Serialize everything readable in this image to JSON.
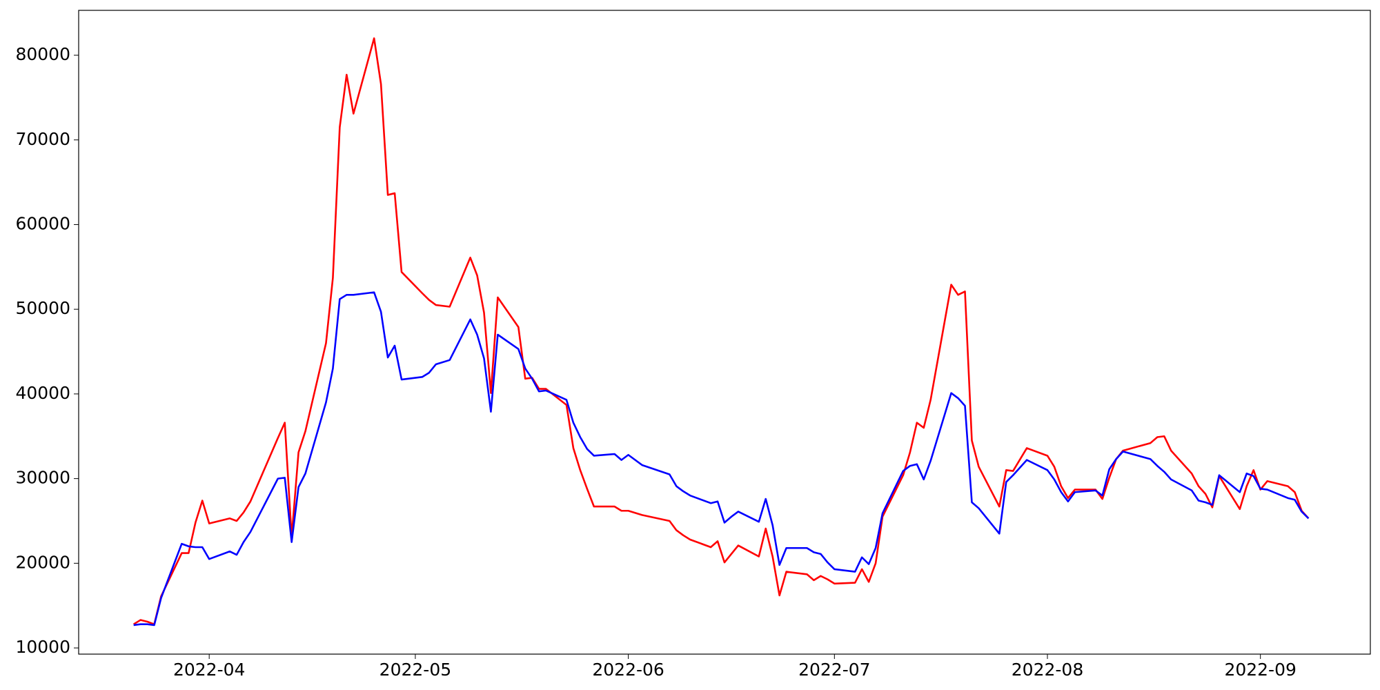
{
  "chart_data": {
    "type": "line",
    "x": [
      "2022-03-21",
      "2022-03-22",
      "2022-03-23",
      "2022-03-24",
      "2022-03-25",
      "2022-03-28",
      "2022-03-29",
      "2022-03-30",
      "2022-03-31",
      "2022-04-01",
      "2022-04-04",
      "2022-04-05",
      "2022-04-06",
      "2022-04-07",
      "2022-04-11",
      "2022-04-12",
      "2022-04-13",
      "2022-04-14",
      "2022-04-15",
      "2022-04-18",
      "2022-04-19",
      "2022-04-20",
      "2022-04-21",
      "2022-04-22",
      "2022-04-25",
      "2022-04-26",
      "2022-04-27",
      "2022-04-28",
      "2022-04-29",
      "2022-05-02",
      "2022-05-03",
      "2022-05-04",
      "2022-05-06",
      "2022-05-09",
      "2022-05-10",
      "2022-05-11",
      "2022-05-12",
      "2022-05-13",
      "2022-05-16",
      "2022-05-17",
      "2022-05-18",
      "2022-05-19",
      "2022-05-20",
      "2022-05-23",
      "2022-05-24",
      "2022-05-25",
      "2022-05-26",
      "2022-05-27",
      "2022-05-30",
      "2022-05-31",
      "2022-06-01",
      "2022-06-03",
      "2022-06-07",
      "2022-06-08",
      "2022-06-09",
      "2022-06-10",
      "2022-06-13",
      "2022-06-14",
      "2022-06-15",
      "2022-06-16",
      "2022-06-17",
      "2022-06-20",
      "2022-06-21",
      "2022-06-22",
      "2022-06-23",
      "2022-06-24",
      "2022-06-27",
      "2022-06-28",
      "2022-06-29",
      "2022-06-30",
      "2022-07-01",
      "2022-07-04",
      "2022-07-05",
      "2022-07-06",
      "2022-07-07",
      "2022-07-08",
      "2022-07-11",
      "2022-07-12",
      "2022-07-13",
      "2022-07-14",
      "2022-07-15",
      "2022-07-18",
      "2022-07-19",
      "2022-07-20",
      "2022-07-21",
      "2022-07-22",
      "2022-07-25",
      "2022-07-26",
      "2022-07-27",
      "2022-07-29",
      "2022-08-01",
      "2022-08-02",
      "2022-08-03",
      "2022-08-04",
      "2022-08-05",
      "2022-08-08",
      "2022-08-09",
      "2022-08-10",
      "2022-08-11",
      "2022-08-12",
      "2022-08-16",
      "2022-08-17",
      "2022-08-18",
      "2022-08-19",
      "2022-08-22",
      "2022-08-23",
      "2022-08-24",
      "2022-08-25",
      "2022-08-26",
      "2022-08-29",
      "2022-08-30",
      "2022-08-31",
      "2022-09-01",
      "2022-09-02",
      "2022-09-05",
      "2022-09-06",
      "2022-09-07",
      "2022-09-08"
    ],
    "series": [
      {
        "color": "red",
        "values": [
          12800,
          13300,
          13100,
          12800,
          16100,
          21200,
          21200,
          24800,
          27400,
          24700,
          25300,
          25000,
          26000,
          27300,
          34800,
          36600,
          23100,
          33100,
          35600,
          46000,
          53700,
          71500,
          77700,
          73100,
          82000,
          76600,
          63500,
          63700,
          54400,
          51900,
          51100,
          50500,
          50300,
          56100,
          54000,
          49600,
          40100,
          51400,
          47900,
          41800,
          41900,
          40600,
          40600,
          38700,
          33600,
          31000,
          28800,
          26700,
          26700,
          26200,
          26200,
          25700,
          25000,
          23900,
          23300,
          22800,
          21900,
          22600,
          20100,
          21100,
          22100,
          20800,
          24100,
          20800,
          16200,
          19000,
          18700,
          18000,
          18500,
          18100,
          17600,
          17700,
          19300,
          17800,
          20000,
          25500,
          30400,
          33100,
          36600,
          36000,
          39300,
          52900,
          51700,
          52100,
          34500,
          31400,
          26700,
          31000,
          30900,
          33600,
          32700,
          31400,
          29100,
          27700,
          28700,
          28700,
          27600,
          30100,
          32300,
          33300,
          34200,
          34900,
          35000,
          33300,
          30600,
          29100,
          28200,
          26600,
          30300,
          26400,
          29100,
          31000,
          28700,
          29700,
          29100,
          28400,
          26200,
          25300
        ]
      },
      {
        "color": "blue",
        "values": [
          12700,
          12800,
          12800,
          12700,
          15900,
          22300,
          22000,
          21900,
          21900,
          20500,
          21400,
          21000,
          22500,
          23700,
          30000,
          30100,
          22500,
          29000,
          30600,
          39000,
          43000,
          51200,
          51700,
          51700,
          52000,
          49700,
          44300,
          45700,
          41700,
          42000,
          42500,
          43500,
          44000,
          48800,
          47000,
          44200,
          37900,
          47000,
          45300,
          43000,
          41800,
          40300,
          40400,
          39300,
          36600,
          34900,
          33500,
          32700,
          32900,
          32200,
          32800,
          31600,
          30500,
          29100,
          28500,
          28000,
          27100,
          27300,
          24800,
          25500,
          26100,
          24900,
          27600,
          24500,
          19800,
          21800,
          21800,
          21300,
          21100,
          20100,
          19300,
          19000,
          20700,
          19900,
          21800,
          25900,
          30900,
          31500,
          31700,
          29900,
          32100,
          40100,
          39500,
          38600,
          27200,
          26500,
          23500,
          29600,
          30400,
          32200,
          31000,
          29900,
          28400,
          27300,
          28400,
          28600,
          28000,
          31100,
          32300,
          33200,
          32300,
          31500,
          30800,
          29900,
          28600,
          27400,
          27200,
          26900,
          30400,
          28400,
          30600,
          30300,
          28800,
          28700,
          27700,
          27500,
          26100,
          25300
        ]
      }
    ],
    "xlim": [
      "2022-03-13",
      "2022-09-17"
    ],
    "xticks": [
      "2022-04",
      "2022-05",
      "2022-06",
      "2022-07",
      "2022-08",
      "2022-09"
    ],
    "ylim": [
      9270,
      85300
    ],
    "yticks": [
      10000,
      20000,
      30000,
      40000,
      50000,
      60000,
      70000,
      80000
    ],
    "grid": false
  }
}
